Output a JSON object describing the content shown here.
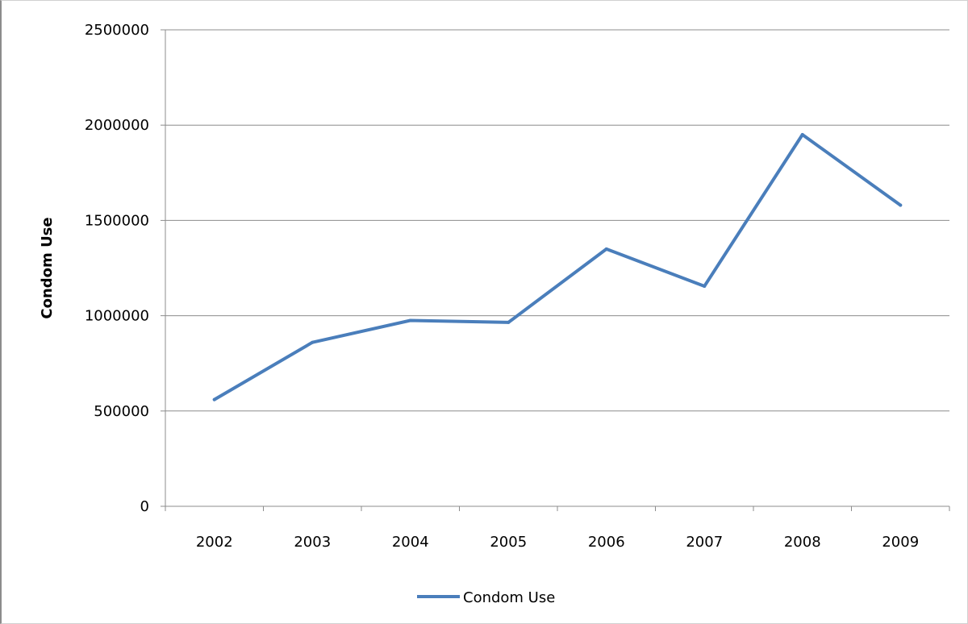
{
  "chart_data": {
    "type": "line",
    "categories": [
      "2002",
      "2003",
      "2004",
      "2005",
      "2006",
      "2007",
      "2008",
      "2009"
    ],
    "series": [
      {
        "name": "Condom Use",
        "values": [
          560000,
          860000,
          975000,
          965000,
          1350000,
          1155000,
          1950000,
          1580000
        ],
        "color": "#4a7ebb"
      }
    ],
    "title": "",
    "xlabel": "",
    "ylabel": "Condom Use",
    "ylim": [
      0,
      2500000
    ],
    "yticks": [
      "0",
      "500000",
      "1000000",
      "1500000",
      "2000000",
      "2500000"
    ],
    "grid": true,
    "legend_position": "bottom"
  }
}
